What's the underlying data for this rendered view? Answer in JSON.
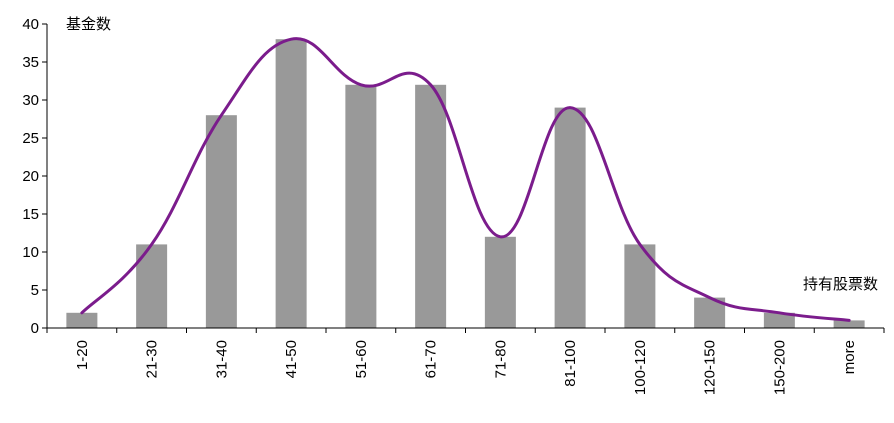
{
  "chart_data": {
    "type": "bar",
    "title": "",
    "ylabel": "基金数",
    "xlabel": "持有股票数",
    "categories": [
      "1-20",
      "21-30",
      "31-40",
      "41-50",
      "51-60",
      "61-70",
      "71-80",
      "81-100",
      "100-120",
      "120-150",
      "150-200",
      "more"
    ],
    "series": [
      {
        "type": "bar",
        "values": [
          2,
          11,
          28,
          38,
          32,
          32,
          12,
          29,
          11,
          4,
          2,
          1
        ]
      },
      {
        "type": "line",
        "smooth": true,
        "values": [
          2,
          11,
          28,
          38,
          32,
          32,
          12,
          29,
          11,
          4,
          2,
          1
        ]
      }
    ],
    "ylim": [
      0,
      40
    ],
    "yticks": [
      0,
      5,
      10,
      15,
      20,
      25,
      30,
      35,
      40
    ],
    "grid": false,
    "legend": "none",
    "colors": {
      "bar": "#999999",
      "line": "#7b1c8c"
    }
  }
}
